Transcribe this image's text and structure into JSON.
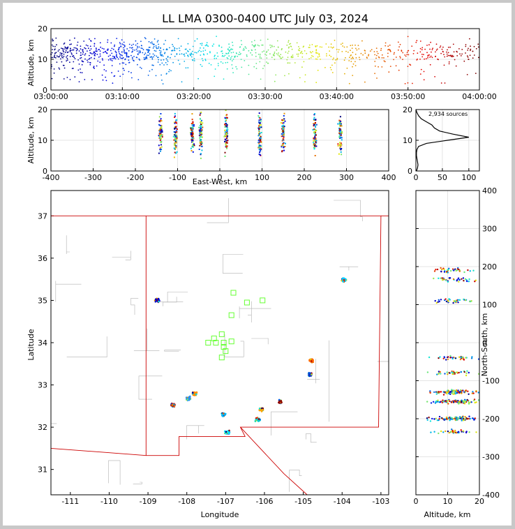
{
  "title": "LL LMA 0300-0400 UTC July 03, 2024",
  "source_count_label": "2,934 sources",
  "colors": {
    "county_lines": "#b0b0b0",
    "state_lines": "#cc0000",
    "station_marker": "#66ff33",
    "grid": "#dddddd"
  },
  "chart_data": [
    {
      "id": "time_height",
      "type": "scatter",
      "ylabel": "Altitude, km",
      "ylim": [
        0,
        20
      ],
      "yticks": [
        0,
        10,
        20
      ],
      "xlim": [
        "03:00:00",
        "04:00:00"
      ],
      "xticks": [
        "03:00:00",
        "03:10:00",
        "03:20:00",
        "03:30:00",
        "03:40:00",
        "03:50:00",
        "04:00:00"
      ],
      "color_encoding": "time (blue to red)",
      "density": [
        {
          "start": "03:00",
          "end": "03:15",
          "level": "high"
        },
        {
          "start": "03:15",
          "end": "03:30",
          "level": "medium"
        },
        {
          "start": "03:30",
          "end": "03:50",
          "level": "medium"
        },
        {
          "start": "03:50",
          "end": "04:00",
          "level": "low"
        }
      ]
    },
    {
      "id": "east_west_altitude",
      "type": "scatter",
      "xlabel": "East-West, km",
      "ylabel": "Altitude, km",
      "xlim": [
        -400,
        400
      ],
      "ylim": [
        0,
        20
      ],
      "xticks": [
        -400,
        -300,
        -200,
        -100,
        0,
        100,
        200,
        300,
        400
      ],
      "yticks": [
        0,
        10,
        20
      ],
      "clusters_km": [
        -140,
        -105,
        -65,
        -45,
        15,
        95,
        150,
        225,
        285
      ]
    },
    {
      "id": "altitude_histogram",
      "type": "line",
      "xlim": [
        0,
        120
      ],
      "ylim": [
        0,
        20
      ],
      "xticks": [
        0,
        50,
        100
      ],
      "yticks": [
        0,
        10,
        20
      ],
      "profile": [
        [
          1,
          0
        ],
        [
          3,
          1
        ],
        [
          4,
          2
        ],
        [
          3,
          3
        ],
        [
          2,
          4
        ],
        [
          1,
          5
        ],
        [
          1,
          6
        ],
        [
          2,
          7
        ],
        [
          5,
          8
        ],
        [
          20,
          9
        ],
        [
          60,
          10
        ],
        [
          100,
          11
        ],
        [
          70,
          12
        ],
        [
          45,
          13
        ],
        [
          35,
          14
        ],
        [
          30,
          15
        ],
        [
          20,
          16
        ],
        [
          10,
          17
        ],
        [
          5,
          18
        ],
        [
          2,
          19
        ],
        [
          0,
          20
        ]
      ]
    },
    {
      "id": "plan_view",
      "type": "scatter",
      "xlabel": "Longitude",
      "ylabel": "Latitude",
      "xlim": [
        -111.5,
        -102.8
      ],
      "ylim": [
        30.4,
        37.6
      ],
      "xticks": [
        -111,
        -110,
        -109,
        -108,
        -107,
        -106,
        -105,
        -104,
        -103
      ],
      "yticks": [
        31,
        32,
        33,
        34,
        35,
        36,
        37
      ],
      "stations": [
        [
          -106.8,
          35.18
        ],
        [
          -106.45,
          34.95
        ],
        [
          -106.05,
          35.0
        ],
        [
          -106.85,
          34.65
        ],
        [
          -107.1,
          34.2
        ],
        [
          -107.3,
          34.1
        ],
        [
          -107.45,
          34.0
        ],
        [
          -107.25,
          34.0
        ],
        [
          -107.05,
          34.0
        ],
        [
          -106.85,
          34.03
        ],
        [
          -107.05,
          33.9
        ],
        [
          -107.0,
          33.8
        ],
        [
          -107.1,
          33.65
        ]
      ],
      "storms": [
        {
          "lon": -108.35,
          "lat": 32.52,
          "color": "#b22222"
        },
        {
          "lon": -107.8,
          "lat": 32.8,
          "color": "#ff8c00"
        },
        {
          "lon": -107.95,
          "lat": 32.68,
          "color": "#1e90ff"
        },
        {
          "lon": -107.05,
          "lat": 32.3,
          "color": "#00bfff"
        },
        {
          "lon": -106.95,
          "lat": 31.88,
          "color": "#00e5ff"
        },
        {
          "lon": -106.18,
          "lat": 32.18,
          "color": "#00ced1"
        },
        {
          "lon": -106.08,
          "lat": 32.42,
          "color": "#ffa500"
        },
        {
          "lon": -105.6,
          "lat": 32.6,
          "color": "#8b0000"
        },
        {
          "lon": -104.78,
          "lat": 33.58,
          "color": "#ff6600"
        },
        {
          "lon": -104.82,
          "lat": 33.25,
          "color": "#0033cc"
        },
        {
          "lon": -108.75,
          "lat": 35.0,
          "color": "#0000cc"
        },
        {
          "lon": -103.95,
          "lat": 35.48,
          "color": "#00ccff"
        }
      ]
    },
    {
      "id": "altitude_north_south",
      "type": "scatter",
      "xlabel": "Altitude, km",
      "ylabel": "North-South, km",
      "xlim": [
        0,
        20
      ],
      "ylim": [
        -400,
        400
      ],
      "xticks": [
        0,
        10,
        20
      ],
      "yticks": [
        -400,
        -300,
        -200,
        -100,
        0,
        100,
        200,
        300,
        400
      ],
      "bands_km": [
        190,
        165,
        110,
        -40,
        -80,
        -130,
        -155,
        -200,
        -235
      ]
    }
  ]
}
